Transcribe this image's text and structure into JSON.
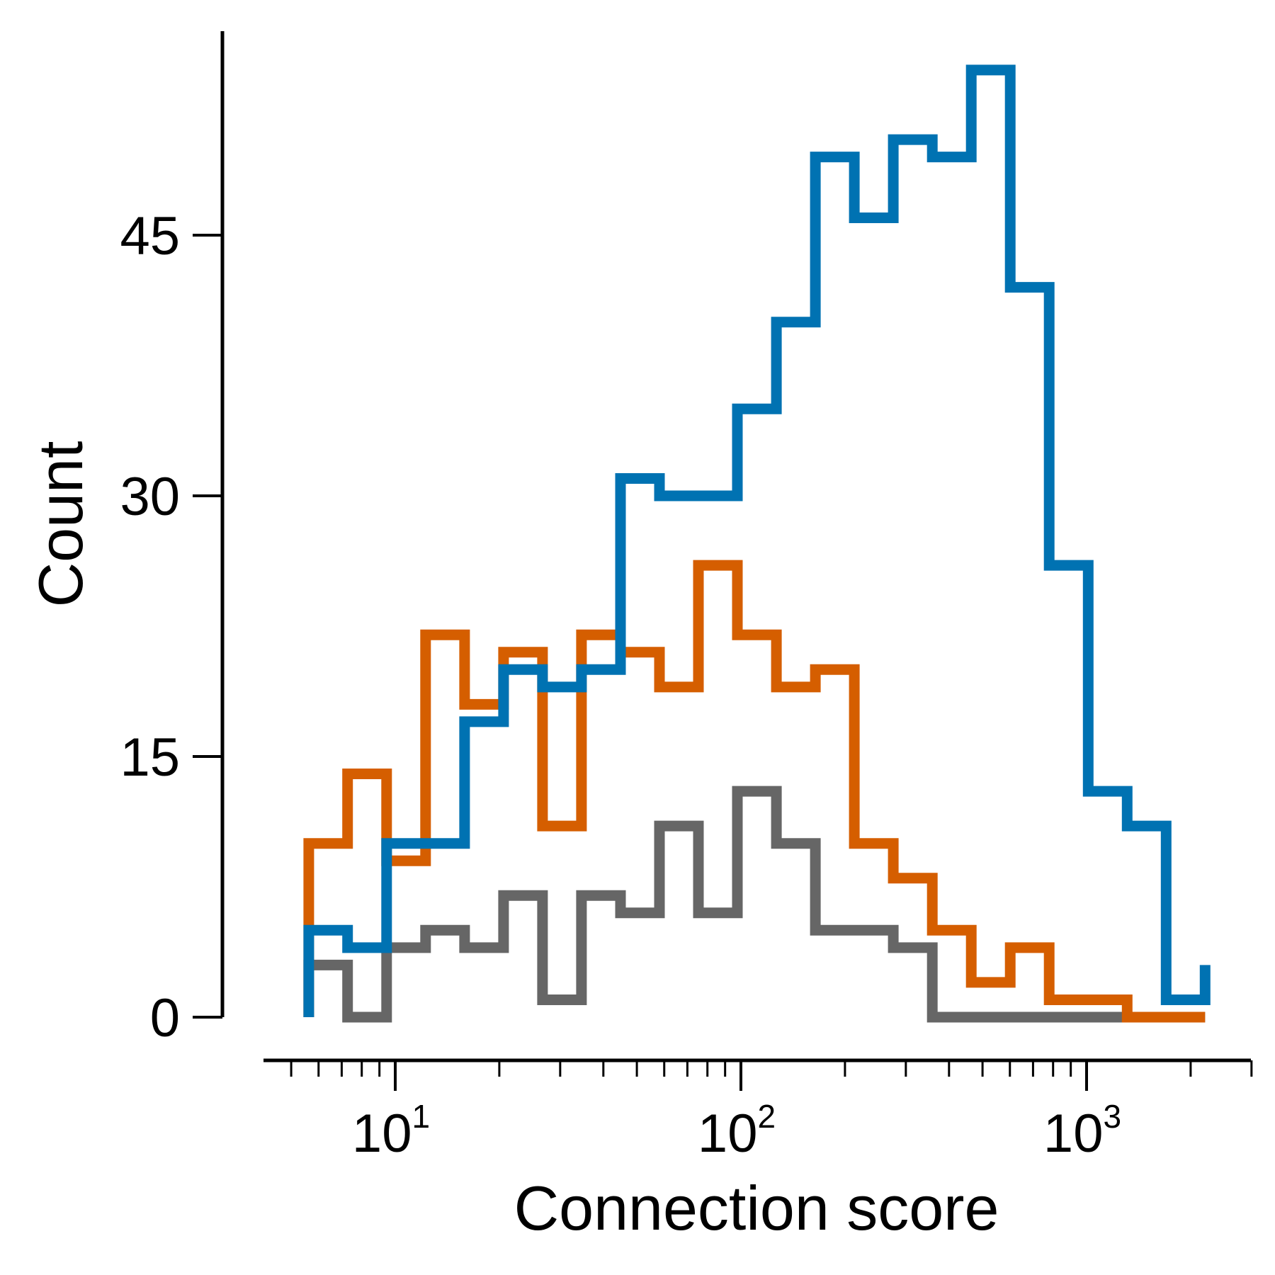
{
  "chart_data": {
    "type": "histogram-step",
    "xlabel": "Connection score",
    "ylabel": "Count",
    "xscale": "log",
    "xlim": [
      4.5,
      3500
    ],
    "ylim": [
      -2,
      55
    ],
    "grid": false,
    "legend": "none",
    "xticks": [
      {
        "value": 10,
        "base": "10",
        "exp": "1"
      },
      {
        "value": 100,
        "base": "10",
        "exp": "2"
      },
      {
        "value": 1000,
        "base": "10",
        "exp": "3"
      }
    ],
    "yticks": [
      {
        "value": 0,
        "label": "0"
      },
      {
        "value": 15,
        "label": "15"
      },
      {
        "value": 30,
        "label": "30"
      },
      {
        "value": 45,
        "label": "45"
      }
    ],
    "bin_edges": [
      5.62,
      7.28,
      9.44,
      12.24,
      15.87,
      20.57,
      26.67,
      34.58,
      44.83,
      58.12,
      75.35,
      97.69,
      126.65,
      164.19,
      212.86,
      275.97,
      357.78,
      463.84,
      601.35,
      779.61,
      1010.72,
      1310.35,
      1698.8,
      2202.4
    ],
    "series": [
      {
        "color": "#0072B2",
        "values": [
          5,
          4,
          10,
          10,
          17,
          20,
          19,
          20,
          31,
          30,
          30,
          35,
          40,
          49.5,
          46,
          50.5,
          49.5,
          54.5,
          42,
          26,
          13,
          11,
          1,
          3
        ]
      },
      {
        "color": "#D55E00",
        "values": [
          10,
          14,
          9,
          22,
          18,
          21,
          11,
          22,
          21,
          19,
          26,
          22,
          19,
          20,
          10,
          8,
          5,
          2,
          4,
          1,
          1,
          0,
          0,
          0
        ]
      },
      {
        "color": "#666666",
        "values": [
          3,
          0,
          4,
          5,
          4,
          7,
          1,
          7,
          6,
          11,
          6,
          13,
          10,
          5,
          5,
          4,
          0,
          0,
          0,
          0,
          0,
          0,
          0,
          0
        ]
      }
    ]
  }
}
